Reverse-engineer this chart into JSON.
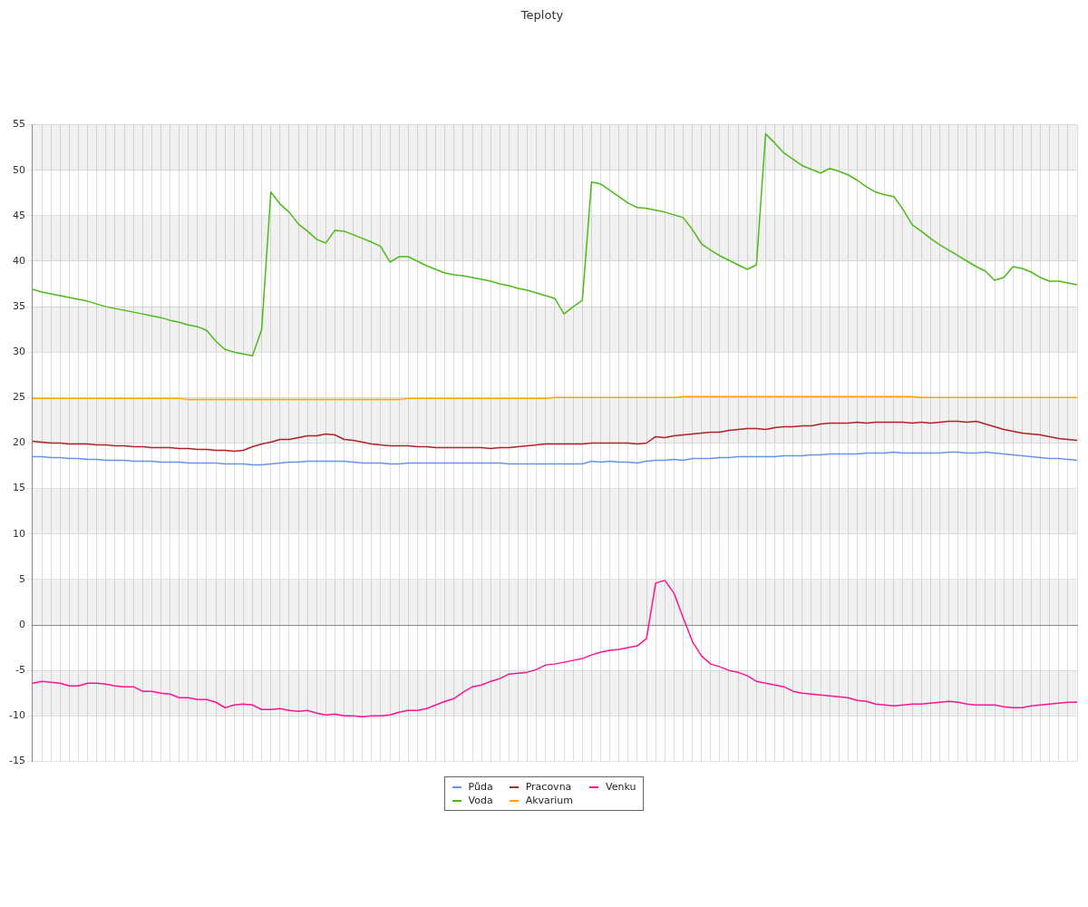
{
  "chart_data": {
    "type": "line",
    "title": "Teploty",
    "categories": [
      null,
      null,
      null,
      null,
      null,
      null,
      null,
      null,
      null,
      null,
      null,
      null,
      null,
      null,
      null,
      null,
      null,
      null,
      null,
      null,
      null,
      null,
      null,
      null,
      null,
      null,
      null,
      null,
      null,
      null,
      null,
      null,
      null,
      null,
      null,
      null,
      null,
      null,
      null,
      null,
      null,
      null,
      null,
      null,
      null,
      null,
      null,
      null,
      null,
      null,
      null,
      null,
      null,
      null,
      null,
      null,
      null,
      null,
      null,
      null,
      null,
      null,
      null,
      null,
      null,
      null,
      null,
      null,
      null,
      null,
      null,
      null,
      null,
      null,
      null,
      null,
      null,
      null,
      null,
      null,
      null,
      null,
      null,
      null,
      null,
      null,
      null,
      null,
      null,
      null,
      null,
      null,
      null,
      null,
      null,
      null,
      null,
      null,
      null,
      null,
      null,
      null,
      null,
      null,
      null,
      null,
      null,
      null,
      null,
      null,
      null,
      null,
      null,
      null,
      null
    ],
    "series": [
      {
        "name": "Půda",
        "color": "#6495ed",
        "values": [
          18.5,
          18.5,
          18.4,
          18.4,
          18.3,
          18.3,
          18.2,
          18.2,
          18.1,
          18.1,
          18.1,
          18.0,
          18.0,
          18.0,
          17.9,
          17.9,
          17.9,
          17.8,
          17.8,
          17.8,
          17.8,
          17.7,
          17.7,
          17.7,
          17.6,
          17.6,
          17.7,
          17.8,
          17.9,
          17.9,
          18.0,
          18.0,
          18.0,
          18.0,
          18.0,
          17.9,
          17.8,
          17.8,
          17.8,
          17.7,
          17.7,
          17.8,
          17.8,
          17.8,
          17.8,
          17.8,
          17.8,
          17.8,
          17.8,
          17.8,
          17.8,
          17.8,
          17.7,
          17.7,
          17.7,
          17.7,
          17.7,
          17.7,
          17.7,
          17.7,
          17.7,
          18.0,
          17.9,
          18.0,
          17.9,
          17.9,
          17.8,
          18.0,
          18.1,
          18.1,
          18.2,
          18.1,
          18.3,
          18.3,
          18.3,
          18.4,
          18.4,
          18.5,
          18.5,
          18.5,
          18.5,
          18.5,
          18.6,
          18.6,
          18.6,
          18.7,
          18.7,
          18.8,
          18.8,
          18.8,
          18.8,
          18.9,
          18.9,
          18.9,
          19.0,
          18.9,
          18.9,
          18.9,
          18.9,
          18.9,
          19.0,
          19.0,
          18.9,
          18.9,
          19.0,
          18.9,
          18.8,
          18.7,
          18.6,
          18.5,
          18.4,
          18.3,
          18.3,
          18.2,
          18.1
        ]
      },
      {
        "name": "Voda",
        "color": "#4cbb17",
        "values": [
          36.9,
          36.6,
          36.4,
          36.2,
          36.0,
          35.8,
          35.6,
          35.3,
          35.0,
          34.8,
          34.6,
          34.4,
          34.2,
          34.0,
          33.8,
          33.5,
          33.3,
          33.0,
          32.8,
          32.4,
          31.2,
          30.3,
          30.0,
          29.8,
          29.6,
          32.5,
          47.6,
          46.3,
          45.4,
          44.1,
          43.3,
          42.4,
          42.0,
          43.4,
          43.3,
          42.9,
          42.5,
          42.1,
          41.6,
          39.9,
          40.5,
          40.5,
          40.0,
          39.5,
          39.1,
          38.7,
          38.5,
          38.4,
          38.2,
          38.0,
          37.8,
          37.5,
          37.3,
          37.0,
          36.8,
          36.5,
          36.2,
          35.9,
          34.2,
          35.0,
          35.7,
          48.7,
          48.5,
          47.8,
          47.1,
          46.4,
          45.9,
          45.8,
          45.6,
          45.4,
          45.1,
          44.8,
          43.5,
          41.9,
          41.2,
          40.6,
          40.1,
          39.6,
          39.1,
          39.6,
          54.0,
          53.0,
          51.9,
          51.2,
          50.5,
          50.1,
          49.7,
          50.2,
          49.9,
          49.5,
          48.9,
          48.2,
          47.6,
          47.3,
          47.1,
          45.7,
          44.0,
          43.3,
          42.5,
          41.8,
          41.2,
          40.6,
          40.0,
          39.4,
          38.9,
          37.9,
          38.2,
          39.4,
          39.2,
          38.8,
          38.2,
          37.8,
          37.8,
          37.6,
          37.4
        ]
      },
      {
        "name": "Pracovna",
        "color": "#b22222",
        "values": [
          20.2,
          20.1,
          20.0,
          20.0,
          19.9,
          19.9,
          19.9,
          19.8,
          19.8,
          19.7,
          19.7,
          19.6,
          19.6,
          19.5,
          19.5,
          19.5,
          19.4,
          19.4,
          19.3,
          19.3,
          19.2,
          19.2,
          19.1,
          19.2,
          19.6,
          19.9,
          20.1,
          20.4,
          20.4,
          20.6,
          20.8,
          20.8,
          21.0,
          20.9,
          20.4,
          20.3,
          20.1,
          19.9,
          19.8,
          19.7,
          19.7,
          19.7,
          19.6,
          19.6,
          19.5,
          19.5,
          19.5,
          19.5,
          19.5,
          19.5,
          19.4,
          19.5,
          19.5,
          19.6,
          19.7,
          19.8,
          19.9,
          19.9,
          19.9,
          19.9,
          19.9,
          20.0,
          20.0,
          20.0,
          20.0,
          20.0,
          19.9,
          20.0,
          20.7,
          20.6,
          20.8,
          20.9,
          21.0,
          21.1,
          21.2,
          21.2,
          21.4,
          21.5,
          21.6,
          21.6,
          21.5,
          21.7,
          21.8,
          21.8,
          21.9,
          21.9,
          22.1,
          22.2,
          22.2,
          22.2,
          22.3,
          22.2,
          22.3,
          22.3,
          22.3,
          22.3,
          22.2,
          22.3,
          22.2,
          22.3,
          22.4,
          22.4,
          22.3,
          22.4,
          22.1,
          21.8,
          21.5,
          21.3,
          21.1,
          21.0,
          20.9,
          20.7,
          20.5,
          20.4,
          20.3
        ]
      },
      {
        "name": "Akvarium",
        "color": "#ffa500",
        "values": [
          24.9,
          24.9,
          24.9,
          24.9,
          24.9,
          24.9,
          24.9,
          24.9,
          24.9,
          24.9,
          24.9,
          24.9,
          24.9,
          24.9,
          24.9,
          24.9,
          24.9,
          24.8,
          24.8,
          24.8,
          24.8,
          24.8,
          24.8,
          24.8,
          24.8,
          24.8,
          24.8,
          24.8,
          24.8,
          24.8,
          24.8,
          24.8,
          24.8,
          24.8,
          24.8,
          24.8,
          24.8,
          24.8,
          24.8,
          24.8,
          24.8,
          24.9,
          24.9,
          24.9,
          24.9,
          24.9,
          24.9,
          24.9,
          24.9,
          24.9,
          24.9,
          24.9,
          24.9,
          24.9,
          24.9,
          24.9,
          24.9,
          25.0,
          25.0,
          25.0,
          25.0,
          25.0,
          25.0,
          25.0,
          25.0,
          25.0,
          25.0,
          25.0,
          25.0,
          25.0,
          25.0,
          25.1,
          25.1,
          25.1,
          25.1,
          25.1,
          25.1,
          25.1,
          25.1,
          25.1,
          25.1,
          25.1,
          25.1,
          25.1,
          25.1,
          25.1,
          25.1,
          25.1,
          25.1,
          25.1,
          25.1,
          25.1,
          25.1,
          25.1,
          25.1,
          25.1,
          25.1,
          25.0,
          25.0,
          25.0,
          25.0,
          25.0,
          25.0,
          25.0,
          25.0,
          25.0,
          25.0,
          25.0,
          25.0,
          25.0,
          25.0,
          25.0,
          25.0,
          25.0,
          25.0
        ]
      },
      {
        "name": "Venku",
        "color": "#ff1493",
        "values": [
          -6.4,
          -6.2,
          -6.3,
          -6.4,
          -6.7,
          -6.7,
          -6.4,
          -6.4,
          -6.5,
          -6.7,
          -6.8,
          -6.8,
          -7.3,
          -7.3,
          -7.5,
          -7.6,
          -8.0,
          -8.0,
          -8.2,
          -8.2,
          -8.5,
          -9.1,
          -8.8,
          -8.7,
          -8.8,
          -9.3,
          -9.3,
          -9.2,
          -9.4,
          -9.5,
          -9.4,
          -9.7,
          -9.9,
          -9.8,
          -10.0,
          -10.0,
          -10.1,
          -10.0,
          -10.0,
          -9.9,
          -9.6,
          -9.4,
          -9.4,
          -9.2,
          -8.8,
          -8.4,
          -8.1,
          -7.4,
          -6.8,
          -6.6,
          -6.2,
          -5.9,
          -5.4,
          -5.3,
          -5.2,
          -4.9,
          -4.4,
          -4.3,
          -4.1,
          -3.9,
          -3.7,
          -3.3,
          -3.0,
          -2.8,
          -2.7,
          -2.5,
          -2.3,
          -1.5,
          4.6,
          4.9,
          3.5,
          0.8,
          -1.8,
          -3.4,
          -4.3,
          -4.6,
          -5.0,
          -5.2,
          -5.6,
          -6.2,
          -6.4,
          -6.6,
          -6.8,
          -7.3,
          -7.5,
          -7.6,
          -7.7,
          -7.8,
          -7.9,
          -8.0,
          -8.3,
          -8.4,
          -8.7,
          -8.8,
          -8.9,
          -8.8,
          -8.7,
          -8.7,
          -8.6,
          -8.5,
          -8.4,
          -8.5,
          -8.7,
          -8.8,
          -8.8,
          -8.8,
          -9.0,
          -9.1,
          -9.1,
          -8.9,
          -8.8,
          -8.7,
          -8.6,
          -8.5,
          -8.5
        ]
      }
    ],
    "ylim": [
      -15,
      55
    ],
    "yticks": [
      -15,
      -10,
      -5,
      0,
      5,
      10,
      15,
      20,
      25,
      30,
      35,
      40,
      45,
      50,
      55
    ],
    "grid": true,
    "legend": "bottom",
    "marker": "none",
    "line_style": "solid"
  }
}
